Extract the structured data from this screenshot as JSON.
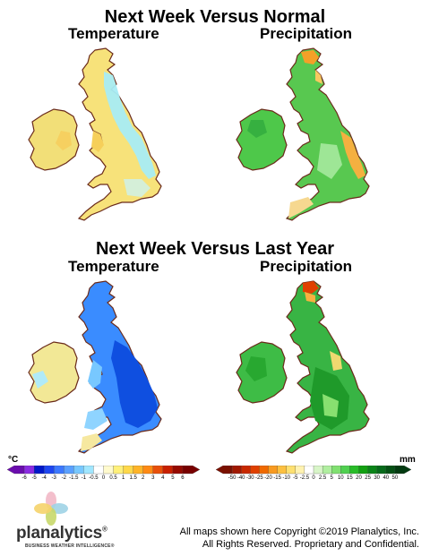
{
  "sections": [
    {
      "title": "Next Week Versus Normal",
      "left_label": "Temperature",
      "right_label": "Precipitation"
    },
    {
      "title": "Next Week Versus Last Year",
      "left_label": "Temperature",
      "right_label": "Precipitation"
    }
  ],
  "legends": {
    "temperature": {
      "unit": "°C",
      "labels": [
        "-6",
        "-5",
        "-4",
        "-3",
        "-2",
        "-1.5",
        "-1",
        "-0.5",
        "0",
        "0.5",
        "1",
        "1.5",
        "2",
        "3",
        "4",
        "5",
        "6"
      ],
      "colors": [
        "#6a0dad",
        "#8a2be2",
        "#0018c8",
        "#1e46f0",
        "#3c78ff",
        "#5aa0ff",
        "#78c8ff",
        "#a0e6ff",
        "#ffffff",
        "#fffacd",
        "#fff07a",
        "#ffd84a",
        "#ffb428",
        "#ff8a14",
        "#e8500a",
        "#c82000",
        "#960a00",
        "#780000"
      ]
    },
    "precipitation": {
      "unit": "mm",
      "labels": [
        "-50",
        "-40",
        "-30",
        "-25",
        "-20",
        "-15",
        "-10",
        "-5",
        "-2.5",
        "0",
        "2.5",
        "5",
        "10",
        "15",
        "20",
        "25",
        "30",
        "40",
        "50"
      ],
      "colors": [
        "#7a1000",
        "#a01800",
        "#c82800",
        "#e04000",
        "#f06a00",
        "#f89a20",
        "#fcc040",
        "#fde070",
        "#fff2b0",
        "#ffffff",
        "#d8f5c8",
        "#b0eea0",
        "#80e070",
        "#50d050",
        "#28bc28",
        "#12a012",
        "#0a8418",
        "#066a1a",
        "#045014",
        "#023a10"
      ]
    }
  },
  "maps": [
    {
      "name": "normal-temperature",
      "island": "#f5e27a",
      "ireland": "#f3e07a",
      "features": "coastal-cyan-east"
    },
    {
      "name": "normal-precipitation",
      "island": "#52c84c",
      "ireland": "#4cc24a",
      "features": "orange-east-coast"
    },
    {
      "name": "lastyear-temperature",
      "island": "#3a8cff",
      "ireland": "#f2e896",
      "features": "deep-blue-east"
    },
    {
      "name": "lastyear-precipitation",
      "island": "#3bb844",
      "ireland": "#40bc46",
      "features": "dark-green-interior"
    }
  ],
  "branding": {
    "logo_name": "planalytics",
    "logo_trademark": "®",
    "logo_tagline": "BUSINESS WEATHER INTELLIGENCE®",
    "copyright_lines": [
      "All maps shown here Copyright ©2019 Planalytics, Inc.",
      "All Rights Reserved. Proprietary and Confidential."
    ]
  }
}
